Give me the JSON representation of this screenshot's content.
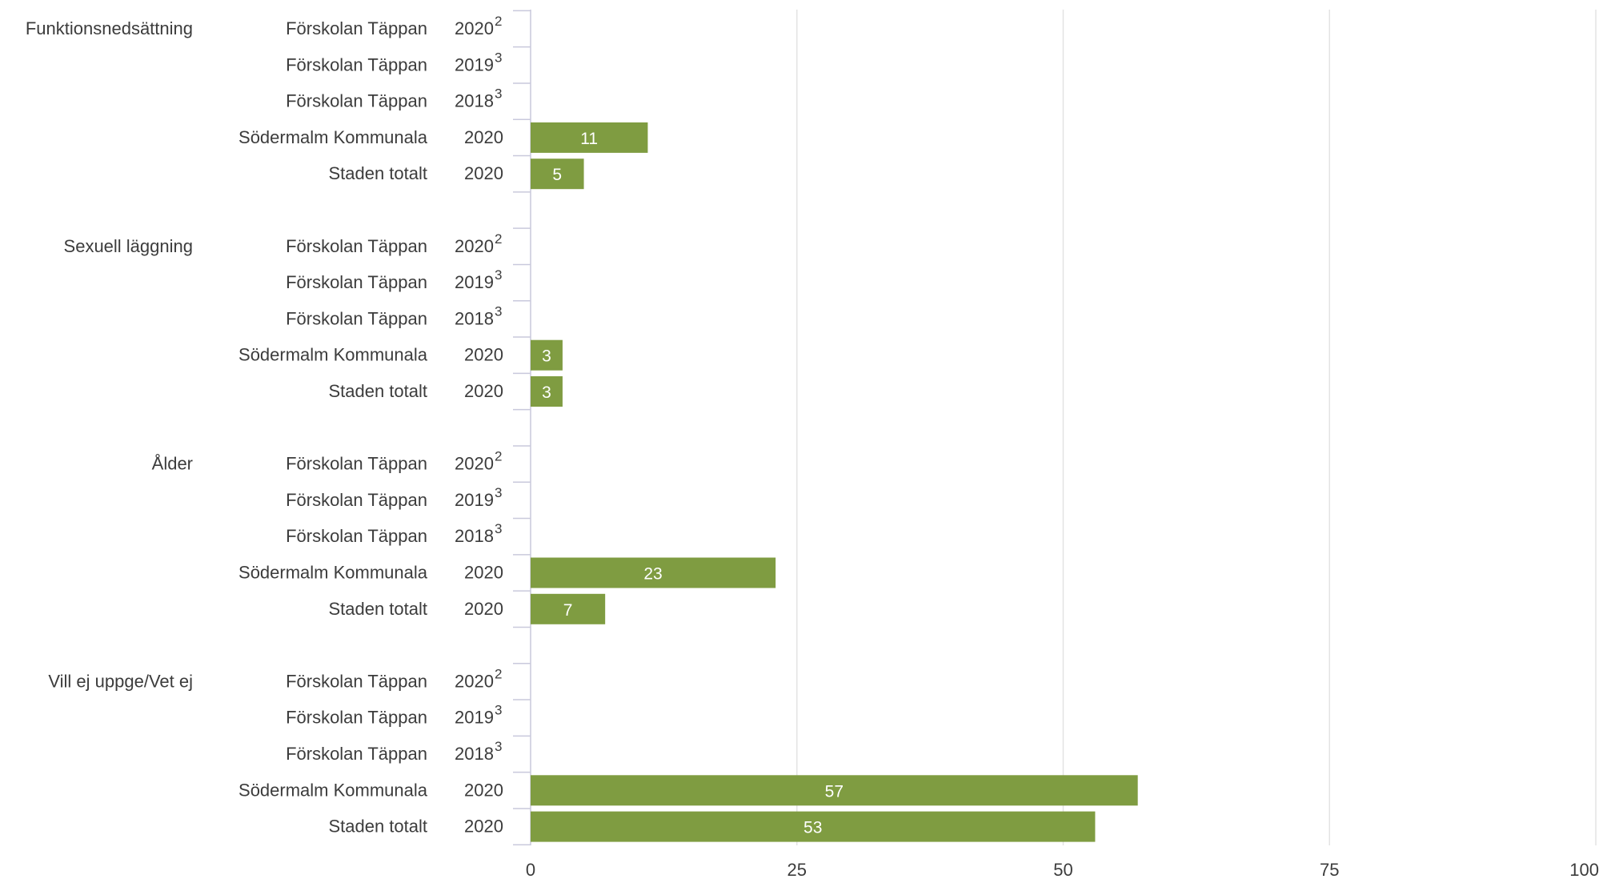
{
  "chart_data": {
    "type": "bar",
    "orientation": "horizontal",
    "xlim": [
      0,
      100
    ],
    "x_ticks": [
      "0",
      "25",
      "50",
      "75",
      "100"
    ],
    "grid": true,
    "bar_color": "#7f9c41",
    "groups": [
      {
        "label": "Funktionsnedsättning",
        "rows": [
          {
            "unit": "Förskolan Täppan",
            "year": "2020",
            "note": "2",
            "value": null
          },
          {
            "unit": "Förskolan Täppan",
            "year": "2019",
            "note": "3",
            "value": null
          },
          {
            "unit": "Förskolan Täppan",
            "year": "2018",
            "note": "3",
            "value": null
          },
          {
            "unit": "Södermalm Kommunala",
            "year": "2020",
            "note": "",
            "value": 11
          },
          {
            "unit": "Staden totalt",
            "year": "2020",
            "note": "",
            "value": 5
          }
        ]
      },
      {
        "label": "Sexuell läggning",
        "rows": [
          {
            "unit": "Förskolan Täppan",
            "year": "2020",
            "note": "2",
            "value": null
          },
          {
            "unit": "Förskolan Täppan",
            "year": "2019",
            "note": "3",
            "value": null
          },
          {
            "unit": "Förskolan Täppan",
            "year": "2018",
            "note": "3",
            "value": null
          },
          {
            "unit": "Södermalm Kommunala",
            "year": "2020",
            "note": "",
            "value": 3
          },
          {
            "unit": "Staden totalt",
            "year": "2020",
            "note": "",
            "value": 3
          }
        ]
      },
      {
        "label": "Ålder",
        "rows": [
          {
            "unit": "Förskolan Täppan",
            "year": "2020",
            "note": "2",
            "value": null
          },
          {
            "unit": "Förskolan Täppan",
            "year": "2019",
            "note": "3",
            "value": null
          },
          {
            "unit": "Förskolan Täppan",
            "year": "2018",
            "note": "3",
            "value": null
          },
          {
            "unit": "Södermalm Kommunala",
            "year": "2020",
            "note": "",
            "value": 23
          },
          {
            "unit": "Staden totalt",
            "year": "2020",
            "note": "",
            "value": 7
          }
        ]
      },
      {
        "label": "Vill ej uppge/Vet ej",
        "rows": [
          {
            "unit": "Förskolan Täppan",
            "year": "2020",
            "note": "2",
            "value": null
          },
          {
            "unit": "Förskolan Täppan",
            "year": "2019",
            "note": "3",
            "value": null
          },
          {
            "unit": "Förskolan Täppan",
            "year": "2018",
            "note": "3",
            "value": null
          },
          {
            "unit": "Södermalm Kommunala",
            "year": "2020",
            "note": "",
            "value": 57
          },
          {
            "unit": "Staden totalt",
            "year": "2020",
            "note": "",
            "value": 53
          }
        ]
      }
    ]
  }
}
